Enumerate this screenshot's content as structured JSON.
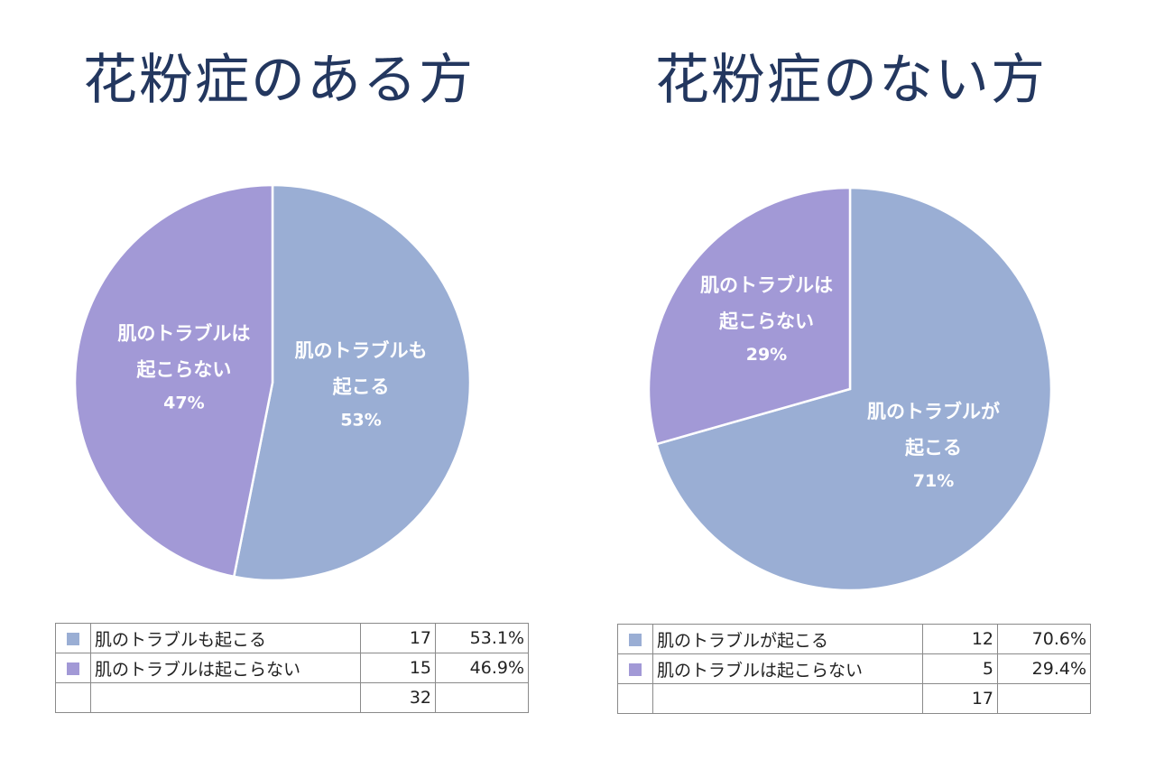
{
  "colors": {
    "blue": "#9aaed4",
    "purple": "#a299d6"
  },
  "chart_data": [
    {
      "type": "pie",
      "title": "花粉症のある方",
      "slices": [
        {
          "label_line1": "肌のトラブルも",
          "label_line2": "起こる",
          "pct_label": "53%",
          "value": 17,
          "color": "#9aaed4"
        },
        {
          "label_line1": "肌のトラブルは",
          "label_line2": "起こらない",
          "pct_label": "47%",
          "value": 15,
          "color": "#a299d6"
        }
      ],
      "table": {
        "rows": [
          {
            "label": "肌のトラブルも起こる",
            "count": "17",
            "percent": "53.1%"
          },
          {
            "label": "肌のトラブルは起こらない",
            "count": "15",
            "percent": "46.9%"
          }
        ],
        "total": "32"
      }
    },
    {
      "type": "pie",
      "title": "花粉症のない方",
      "slices": [
        {
          "label_line1": "肌のトラブルが",
          "label_line2": "起こる",
          "pct_label": "71%",
          "value": 12,
          "color": "#9aaed4"
        },
        {
          "label_line1": "肌のトラブルは",
          "label_line2": "起こらない",
          "pct_label": "29%",
          "value": 5,
          "color": "#a299d6"
        }
      ],
      "table": {
        "rows": [
          {
            "label": "肌のトラブルが起こる",
            "count": "12",
            "percent": "70.6%"
          },
          {
            "label": "肌のトラブルは起こらない",
            "count": "5",
            "percent": "29.4%"
          }
        ],
        "total": "17"
      }
    }
  ]
}
